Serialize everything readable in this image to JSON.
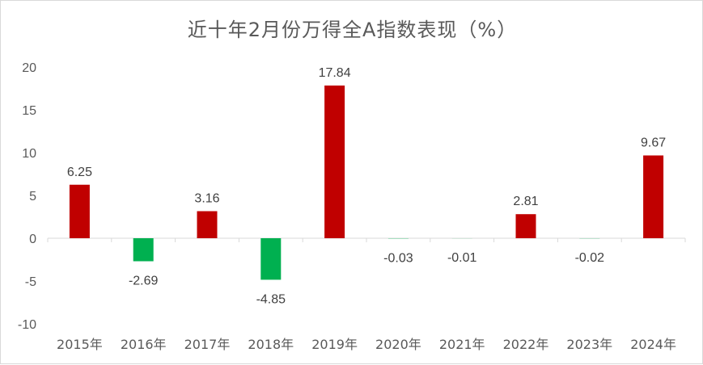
{
  "chart_data": {
    "type": "bar",
    "title": "近十年2月份万得全A指数表现（%）",
    "categories": [
      "2015年",
      "2016年",
      "2017年",
      "2018年",
      "2019年",
      "2020年",
      "2021年",
      "2022年",
      "2023年",
      "2024年"
    ],
    "values": [
      6.25,
      -2.69,
      3.16,
      -4.85,
      17.84,
      -0.03,
      -0.01,
      2.81,
      -0.02,
      9.67
    ],
    "data_labels": [
      "6.25",
      "-2.69",
      "3.16",
      "-4.85",
      "17.84",
      "-0.03",
      "-0.01",
      "2.81",
      "-0.02",
      "9.67"
    ],
    "ylim": [
      -10,
      20
    ],
    "yticks": [
      20,
      15,
      10,
      5,
      0,
      -5,
      -10
    ],
    "xlabel": "",
    "ylabel": "",
    "grid": false,
    "legend": "none",
    "colors": {
      "positive": "#c00000",
      "negative": "#00b050",
      "axis": "#d9d9d9",
      "text": "#595959"
    }
  }
}
